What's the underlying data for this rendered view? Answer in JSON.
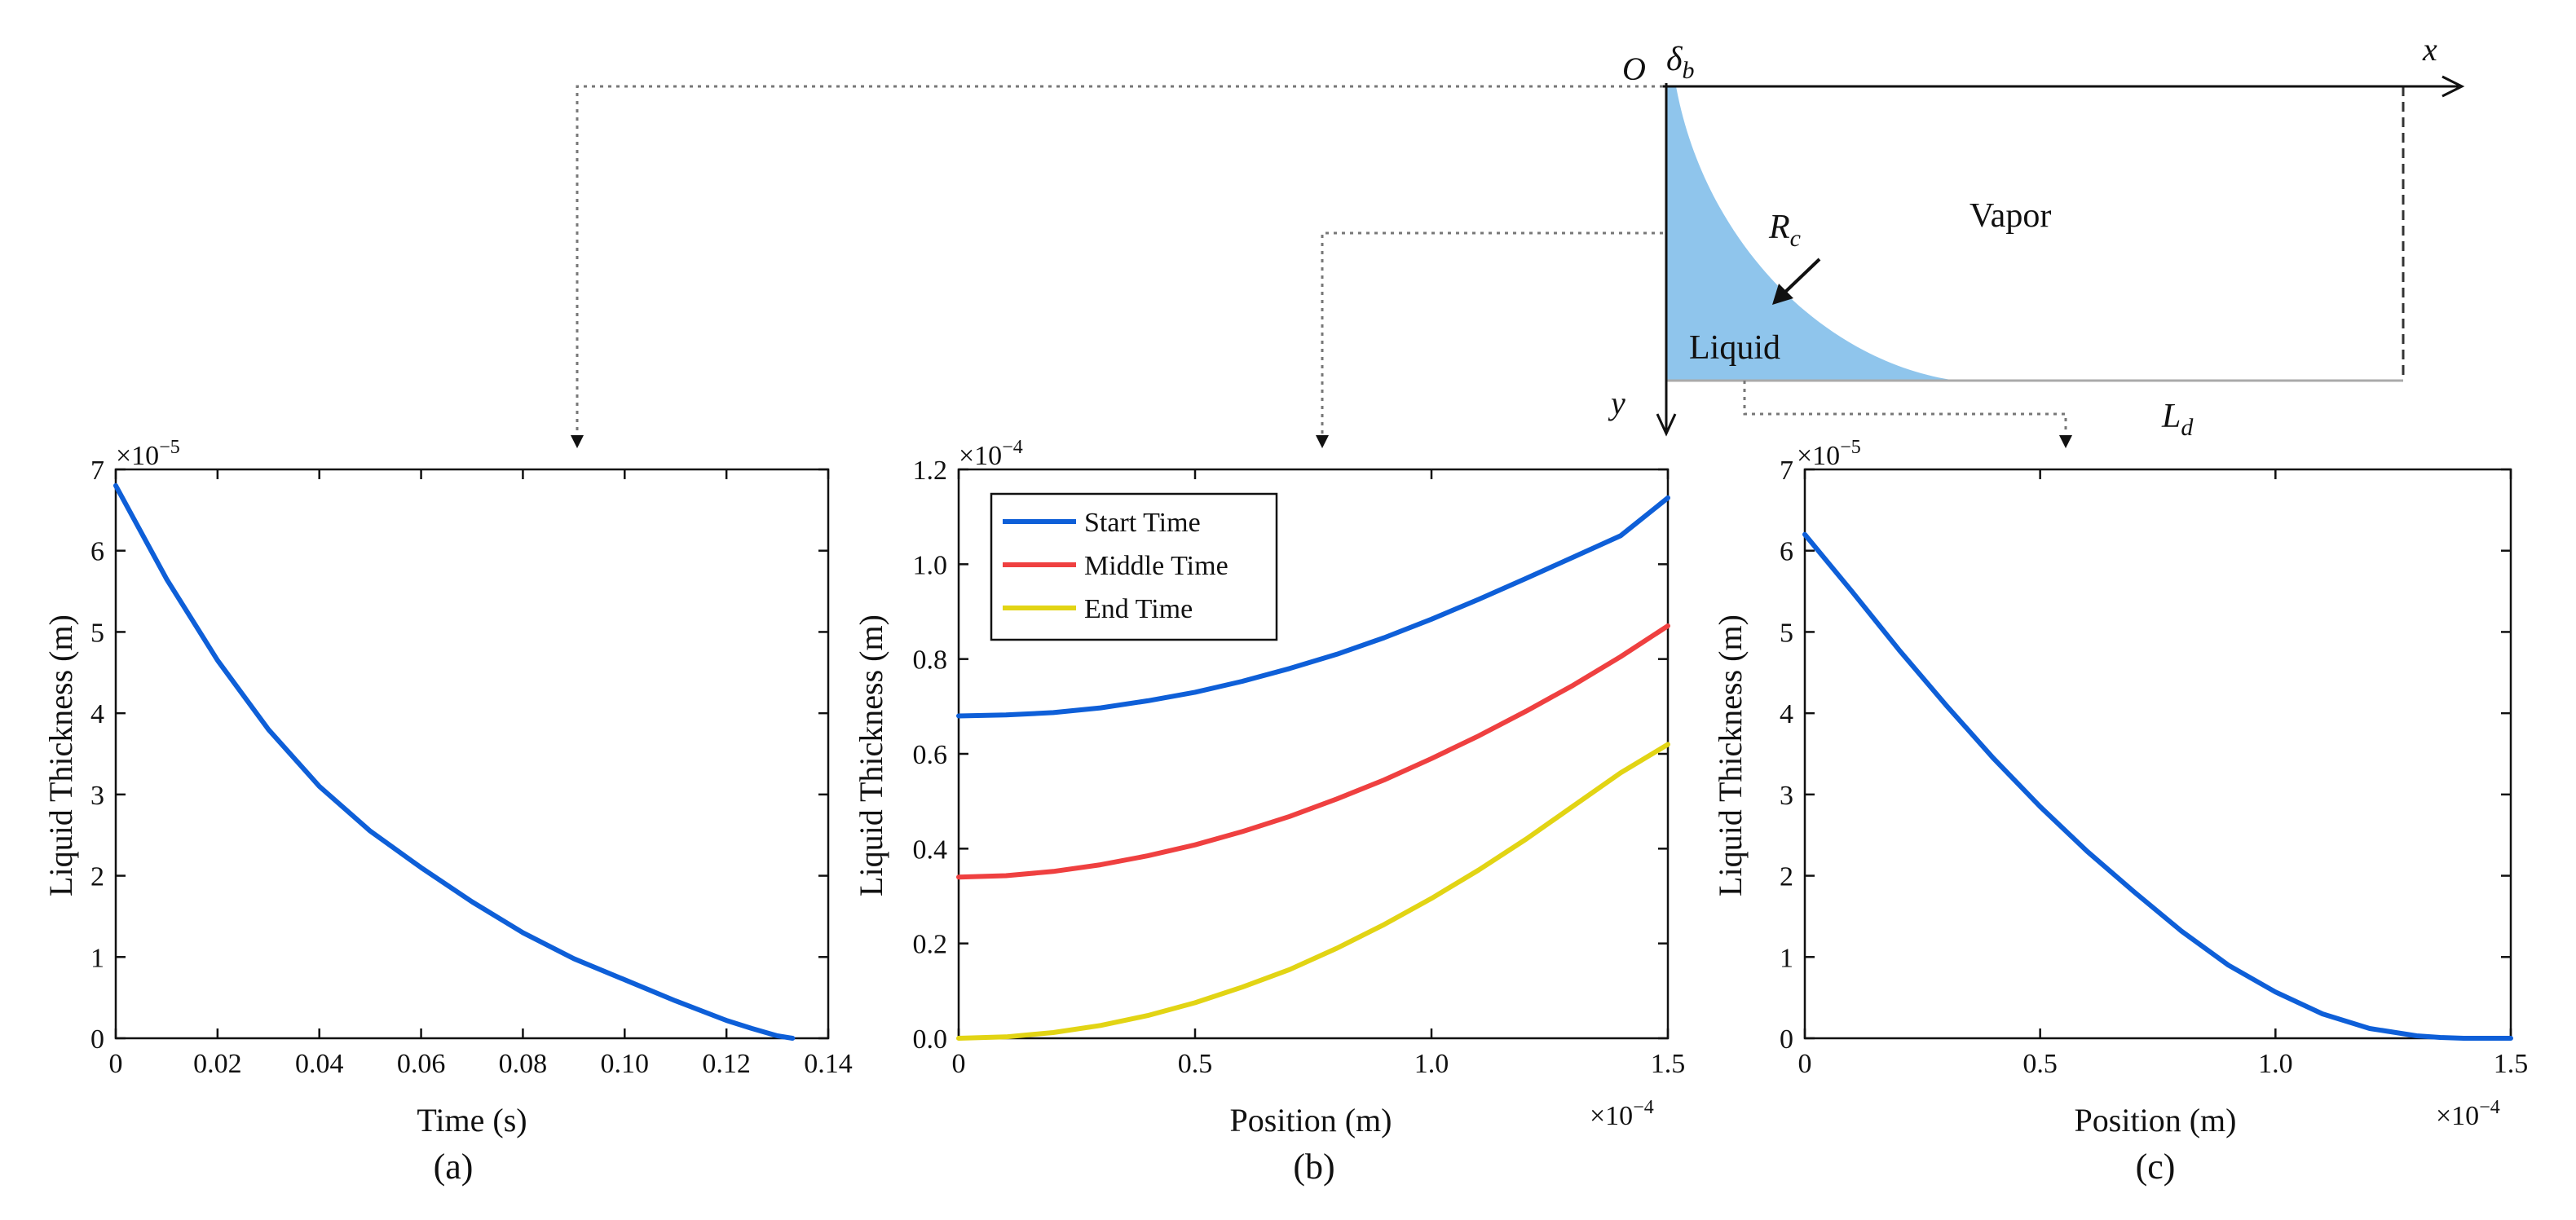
{
  "colors": {
    "blue": "#0e5fd8",
    "red": "#ef4040",
    "yellow": "#e2d414",
    "liquid_fill": "#8fc5ec",
    "axis": "#111111",
    "connector": "#777777"
  },
  "schematic": {
    "origin_label": "O",
    "delta_label": "δ",
    "delta_sub": "b",
    "x_label": "x",
    "y_label": "y",
    "vapor_label": "Vapor",
    "liquid_label": "Liquid",
    "radius_label": "R",
    "radius_sub": "c",
    "length_label": "L",
    "length_sub": "d"
  },
  "chart_data": [
    {
      "id": "a",
      "type": "line",
      "panel_label": "(a)",
      "xlabel": "Time (s)",
      "ylabel": "Liquid Thickness (m)",
      "y_multiplier": "×10",
      "y_exponent": "−5",
      "x_multiplier": "",
      "x_exponent": "",
      "xlim": [
        0,
        0.14
      ],
      "ylim": [
        0,
        7
      ],
      "xticks": [
        0,
        0.02,
        0.04,
        0.06,
        0.08,
        0.1,
        0.12,
        0.14
      ],
      "xtick_labels": [
        "0",
        "0.02",
        "0.04",
        "0.06",
        "0.08",
        "0.10",
        "0.12",
        "0.14"
      ],
      "yticks": [
        0,
        1,
        2,
        3,
        4,
        5,
        6,
        7
      ],
      "ytick_labels": [
        "0",
        "1",
        "2",
        "3",
        "4",
        "5",
        "6",
        "7"
      ],
      "series": [
        {
          "color": "#0e5fd8",
          "x": [
            0,
            0.01,
            0.02,
            0.03,
            0.04,
            0.05,
            0.06,
            0.07,
            0.08,
            0.09,
            0.1,
            0.11,
            0.12,
            0.125,
            0.13,
            0.133
          ],
          "y": [
            6.8,
            5.65,
            4.65,
            3.8,
            3.1,
            2.55,
            2.1,
            1.68,
            1.3,
            0.98,
            0.72,
            0.46,
            0.22,
            0.12,
            0.03,
            0
          ]
        }
      ]
    },
    {
      "id": "b",
      "type": "line",
      "panel_label": "(b)",
      "xlabel": "Position (m)",
      "ylabel": "Liquid Thickness (m)",
      "y_multiplier": "×10",
      "y_exponent": "−4",
      "x_multiplier": "×10",
      "x_exponent": "−4",
      "xlim": [
        0,
        1.5
      ],
      "ylim": [
        0,
        1.2
      ],
      "xticks": [
        0,
        0.5,
        1.0,
        1.5
      ],
      "xtick_labels": [
        "0",
        "0.5",
        "1.0",
        "1.5"
      ],
      "yticks": [
        0,
        0.2,
        0.4,
        0.6,
        0.8,
        1.0,
        1.2
      ],
      "ytick_labels": [
        "0.0",
        "0.2",
        "0.4",
        "0.6",
        "0.8",
        "1.0",
        "1.2"
      ],
      "legend": "top-left",
      "series": [
        {
          "name": "Start Time",
          "color": "#0e5fd8",
          "x": [
            0,
            0.1,
            0.2,
            0.3,
            0.4,
            0.5,
            0.6,
            0.7,
            0.8,
            0.9,
            1.0,
            1.1,
            1.2,
            1.3,
            1.4,
            1.5
          ],
          "y": [
            0.68,
            0.682,
            0.687,
            0.697,
            0.712,
            0.73,
            0.753,
            0.78,
            0.81,
            0.845,
            0.884,
            0.926,
            0.97,
            1.015,
            1.06,
            1.14
          ]
        },
        {
          "name": "Middle Time",
          "color": "#ef4040",
          "x": [
            0,
            0.1,
            0.2,
            0.3,
            0.4,
            0.5,
            0.6,
            0.7,
            0.8,
            0.9,
            1.0,
            1.1,
            1.2,
            1.3,
            1.4,
            1.5
          ],
          "y": [
            0.34,
            0.343,
            0.352,
            0.366,
            0.385,
            0.408,
            0.436,
            0.468,
            0.505,
            0.545,
            0.59,
            0.638,
            0.69,
            0.745,
            0.805,
            0.87
          ]
        },
        {
          "name": "End Time",
          "color": "#e2d414",
          "x": [
            0,
            0.1,
            0.2,
            0.3,
            0.4,
            0.5,
            0.6,
            0.7,
            0.8,
            0.9,
            1.0,
            1.1,
            1.2,
            1.3,
            1.4,
            1.5
          ],
          "y": [
            0,
            0.003,
            0.012,
            0.027,
            0.048,
            0.075,
            0.108,
            0.145,
            0.19,
            0.24,
            0.295,
            0.355,
            0.42,
            0.49,
            0.56,
            0.62
          ]
        }
      ]
    },
    {
      "id": "c",
      "type": "line",
      "panel_label": "(c)",
      "xlabel": "Position (m)",
      "ylabel": "Liquid Thickness (m)",
      "y_multiplier": "×10",
      "y_exponent": "−5",
      "x_multiplier": "×10",
      "x_exponent": "−4",
      "xlim": [
        0,
        1.5
      ],
      "ylim": [
        0,
        7
      ],
      "xticks": [
        0,
        0.5,
        1.0,
        1.5
      ],
      "xtick_labels": [
        "0",
        "0.5",
        "1.0",
        "1.5"
      ],
      "yticks": [
        0,
        1,
        2,
        3,
        4,
        5,
        6,
        7
      ],
      "ytick_labels": [
        "0",
        "1",
        "2",
        "3",
        "4",
        "5",
        "6",
        "7"
      ],
      "series": [
        {
          "color": "#0e5fd8",
          "x": [
            0,
            0.1,
            0.2,
            0.3,
            0.4,
            0.5,
            0.6,
            0.7,
            0.8,
            0.9,
            1.0,
            1.1,
            1.2,
            1.3,
            1.35,
            1.4,
            1.45,
            1.5
          ],
          "y": [
            6.2,
            5.5,
            4.78,
            4.1,
            3.45,
            2.85,
            2.3,
            1.8,
            1.32,
            0.9,
            0.57,
            0.3,
            0.12,
            0.03,
            0.01,
            0.0,
            0.0,
            0.0
          ]
        }
      ]
    }
  ]
}
